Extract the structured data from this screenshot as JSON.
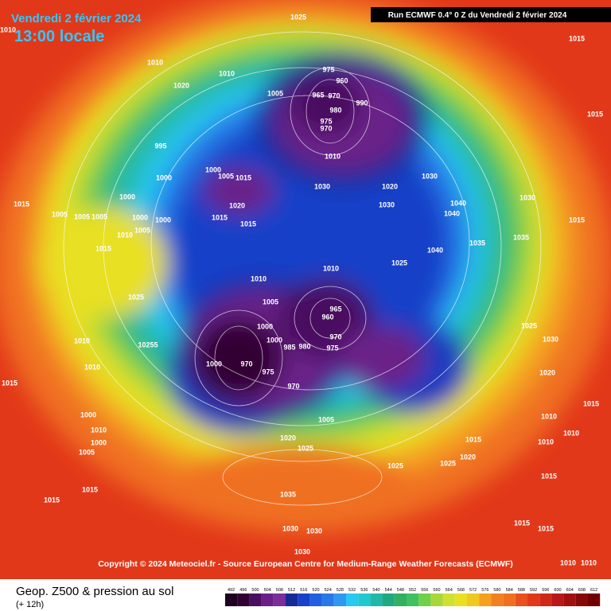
{
  "header": {
    "date": "Vendredi 2 février 2024",
    "time": "13:00 locale",
    "run": "Run ECMWF 0.4° 0 Z du Vendredi 2 février 2024"
  },
  "copyright": "Copyright © 2024 Meteociel.fr - Source European Centre for Medium-Range Weather Forecasts (ECMWF)",
  "legend": {
    "title": "Geop. Z500 & pression au sol",
    "subtitle": "(+ 12h)",
    "scale": [
      492,
      496,
      500,
      504,
      508,
      512,
      516,
      520,
      524,
      528,
      532,
      536,
      540,
      544,
      548,
      552,
      556,
      560,
      564,
      568,
      572,
      576,
      580,
      584,
      588,
      592,
      596,
      600,
      604,
      608,
      612
    ]
  },
  "isobar_labels": [
    "1025",
    "1010",
    "1010",
    "1020",
    "1005",
    "975",
    "960",
    "965",
    "970",
    "980",
    "990",
    "975",
    "970",
    "1010",
    "995",
    "1000",
    "1000",
    "1005",
    "1015",
    "1020",
    "1015",
    "1015",
    "1015",
    "1005",
    "1005",
    "1005",
    "1000",
    "1000",
    "1000",
    "1005",
    "1010",
    "1015",
    "1025",
    "1010",
    "10255",
    "1010",
    "1015",
    "1000",
    "1010",
    "1000",
    "1005",
    "1015",
    "1015",
    "1030",
    "1020",
    "1030",
    "1030",
    "1040",
    "1040",
    "1040",
    "1035",
    "1035",
    "1030",
    "1015",
    "1015",
    "1015",
    "1010",
    "1025",
    "1010",
    "1005",
    "965",
    "960",
    "970",
    "975",
    "980",
    "985",
    "1000",
    "1000",
    "970",
    "975",
    "1000",
    "970",
    "1005",
    "1020",
    "1025",
    "1015",
    "1020",
    "1025",
    "1025",
    "1035",
    "1030",
    "1030",
    "1030",
    "1010",
    "1010",
    "1010",
    "1015",
    "1015",
    "1015",
    "1015",
    "1020",
    "1030",
    "1025",
    "1010",
    "1010",
    "1010"
  ]
}
